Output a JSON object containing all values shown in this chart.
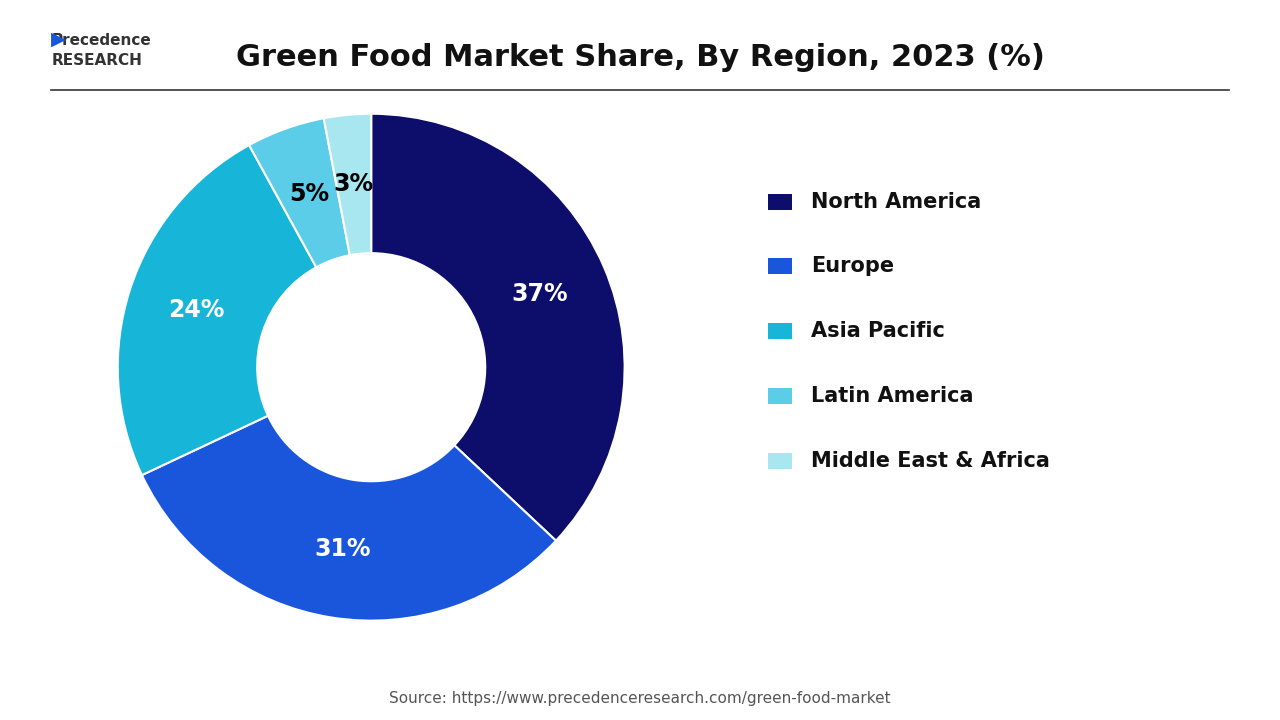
{
  "title": "Green Food Market Share, By Region, 2023 (%)",
  "labels": [
    "North America",
    "Europe",
    "Asia Pacific",
    "Latin America",
    "Middle East & Africa"
  ],
  "values": [
    37,
    31,
    24,
    5,
    3
  ],
  "colors": [
    "#0d0d6b",
    "#1a56db",
    "#17b5d8",
    "#5bcde8",
    "#a8e6f0"
  ],
  "label_colors": [
    "white",
    "white",
    "white",
    "black",
    "black"
  ],
  "source": "Source: https://www.precedenceresearch.com/green-food-market",
  "background_color": "#ffffff",
  "title_fontsize": 22,
  "legend_fontsize": 15,
  "pct_fontsize": 17
}
